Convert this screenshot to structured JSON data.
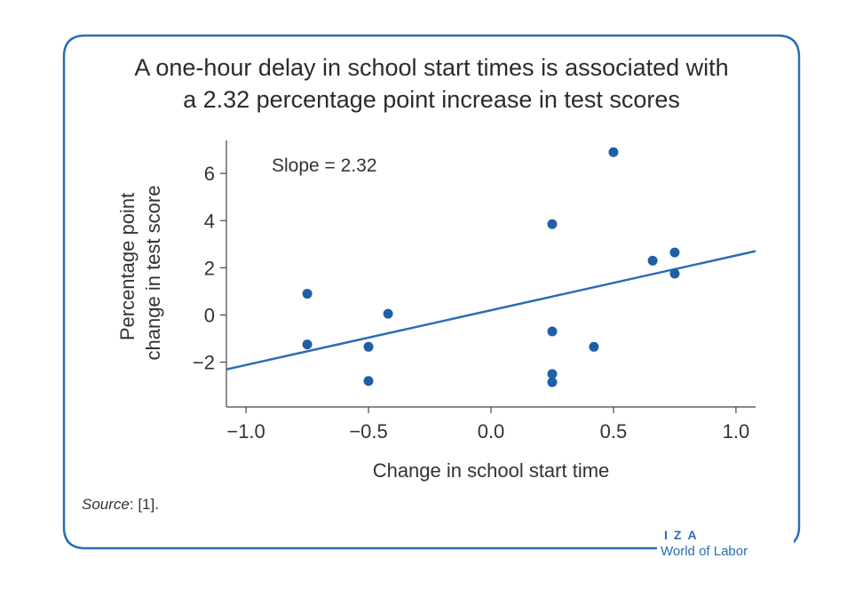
{
  "title_line1": "A one-hour delay in school start times is associated with",
  "title_line2": "a 2.32 percentage point increase in test scores",
  "source_label": "Source",
  "source_text": ": [1].",
  "brand_top": "IZA",
  "brand_bottom": "World of Labor",
  "colors": {
    "accent": "#2a6db5",
    "point": "#1f5fa8",
    "frame": "#2a6db5"
  },
  "chart_data": {
    "type": "scatter",
    "xlabel": "Change in school start time",
    "ylabel_line1": "Percentage point",
    "ylabel_line2": "change in test score",
    "annotation": "Slope = 2.32",
    "xlim": [
      -1.08,
      1.08
    ],
    "ylim": [
      -3.9,
      7.4
    ],
    "x_ticks": [
      -1.0,
      -0.5,
      0.0,
      0.5,
      1.0
    ],
    "x_tick_labels": [
      "−1.0",
      "−0.5",
      "0.0",
      "0.5",
      "1.0"
    ],
    "y_ticks": [
      -2,
      0,
      2,
      4,
      6
    ],
    "y_tick_labels": [
      "−2",
      "0",
      "2",
      "4",
      "6"
    ],
    "grid": false,
    "points": [
      {
        "x": -0.75,
        "y": 0.9
      },
      {
        "x": -0.75,
        "y": -1.25
      },
      {
        "x": -0.5,
        "y": -1.35
      },
      {
        "x": -0.5,
        "y": -2.8
      },
      {
        "x": -0.42,
        "y": 0.05
      },
      {
        "x": 0.25,
        "y": 3.85
      },
      {
        "x": 0.25,
        "y": -0.7
      },
      {
        "x": 0.25,
        "y": -2.5
      },
      {
        "x": 0.25,
        "y": -2.85
      },
      {
        "x": 0.42,
        "y": -1.35
      },
      {
        "x": 0.5,
        "y": 6.9
      },
      {
        "x": 0.66,
        "y": 2.3
      },
      {
        "x": 0.75,
        "y": 2.65
      },
      {
        "x": 0.75,
        "y": 1.75
      }
    ],
    "fit_line": {
      "slope": 2.32,
      "intercept": 0.2,
      "x_range": [
        -1.08,
        1.08
      ]
    }
  }
}
